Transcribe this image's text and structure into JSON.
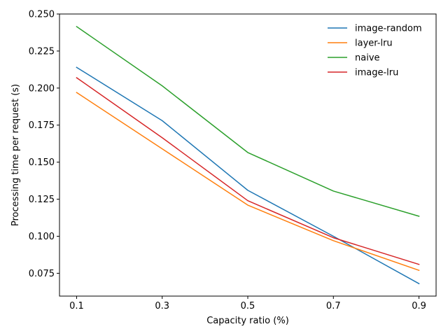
{
  "chart_data": {
    "type": "line",
    "title": "",
    "xlabel": "Capacity ratio (%)",
    "ylabel": "Processing time per request (s)",
    "x": [
      0.1,
      0.3,
      0.5,
      0.7,
      0.9
    ],
    "x_tick_labels": [
      "0.1",
      "0.3",
      "0.5",
      "0.7",
      "0.9"
    ],
    "xlim": [
      0.06,
      0.94
    ],
    "ylim": [
      0.0596,
      0.25
    ],
    "y_ticks": [
      0.075,
      0.1,
      0.125,
      0.15,
      0.175,
      0.2,
      0.225,
      0.25
    ],
    "y_tick_labels": [
      "0.075",
      "0.100",
      "0.125",
      "0.150",
      "0.175",
      "0.200",
      "0.225",
      "0.250"
    ],
    "grid": false,
    "legend_position": "top-right",
    "series": [
      {
        "name": "image-random",
        "color": "#1f77b4",
        "values": [
          0.214,
          0.178,
          0.131,
          0.1,
          0.068
        ]
      },
      {
        "name": "layer-lru",
        "color": "#ff7f0e",
        "values": [
          0.197,
          0.159,
          0.121,
          0.097,
          0.077
        ]
      },
      {
        "name": "naive",
        "color": "#2ca02c",
        "values": [
          0.2415,
          0.2015,
          0.1565,
          0.1305,
          0.1135
        ]
      },
      {
        "name": "image-lru",
        "color": "#d62728",
        "values": [
          0.207,
          0.1665,
          0.124,
          0.099,
          0.081
        ]
      }
    ]
  }
}
